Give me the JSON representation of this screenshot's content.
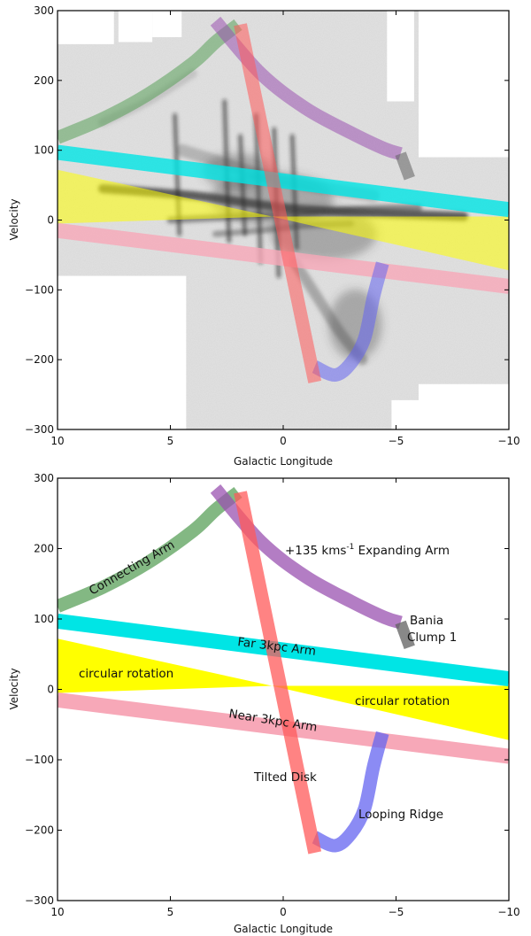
{
  "chart_data": [
    {
      "type": "line",
      "panel": "top",
      "xlabel": "Galactic Longitude",
      "ylabel": "Velocity",
      "xlim": [
        10,
        -10
      ],
      "ylim": [
        -300,
        300
      ],
      "xticks": [
        10,
        5,
        0,
        -5,
        -10
      ],
      "xticklabels": [
        "10",
        "5",
        "0",
        "−5",
        "−10"
      ],
      "yticks": [
        300,
        200,
        100,
        0,
        -100,
        -200,
        -300
      ],
      "yticklabels": [
        "300",
        "200",
        "100",
        "0",
        "−100",
        "−200",
        "−300"
      ],
      "background": "grayscale CO longitude-velocity map",
      "grid": false
    },
    {
      "type": "line",
      "panel": "bottom",
      "xlabel": "Galactic Longitude",
      "ylabel": "Velocity",
      "xlim": [
        10,
        -10
      ],
      "ylim": [
        -300,
        300
      ],
      "xticks": [
        10,
        5,
        0,
        -5,
        -10
      ],
      "xticklabels": [
        "10",
        "5",
        "0",
        "−5",
        "−10"
      ],
      "yticks": [
        300,
        200,
        100,
        0,
        -100,
        -200,
        -300
      ],
      "yticklabels": [
        "300",
        "200",
        "100",
        "0",
        "−100",
        "−200",
        "−300"
      ],
      "grid": false,
      "annotations": {
        "connecting_arm": "Connecting Arm",
        "expanding_arm_prefix": "+135 kms",
        "expanding_arm_sup": "-1",
        "expanding_arm_suffix": " Expanding Arm",
        "bania_line1": "Bania",
        "bania_line2": "Clump 1",
        "far_arm": "Far 3kpc Arm",
        "circular_left": "circular rotation",
        "circular_right": "circular rotation",
        "near_arm": "Near 3kpc Arm",
        "tilted_disk": "Tilted Disk",
        "looping_ridge": "Looping Ridge"
      }
    }
  ],
  "features": [
    {
      "name": "Connecting Arm",
      "kind": "line",
      "color": "#5aa05a",
      "x": [
        10,
        8,
        6,
        4,
        3,
        2
      ],
      "y": [
        118,
        145,
        180,
        225,
        255,
        280
      ]
    },
    {
      "name": "+135 kms-1 Expanding Arm",
      "kind": "line",
      "color": "#9a52b0",
      "x": [
        3,
        1,
        -1,
        -3,
        -4.5,
        -5.2
      ],
      "y": [
        285,
        210,
        160,
        125,
        102,
        95
      ]
    },
    {
      "name": "Bania Clump 1",
      "kind": "line",
      "color": "#606060",
      "x": [
        -5.2,
        -5.6
      ],
      "y": [
        95,
        60
      ]
    },
    {
      "name": "Far 3kpc Arm",
      "kind": "band",
      "color": "#00e5e5",
      "x": [
        10,
        -10
      ],
      "y": [
        97,
        15
      ]
    },
    {
      "name": "Near 3kpc Arm",
      "kind": "band",
      "color": "#f7a8b8",
      "x": [
        10,
        -10
      ],
      "y": [
        -15,
        -95
      ]
    },
    {
      "name": "circular rotation",
      "kind": "area",
      "color": "#ffff00",
      "x": [
        10,
        0.5,
        -10
      ],
      "upper": [
        72,
        5,
        5
      ],
      "lower": [
        -5,
        5,
        -72
      ]
    },
    {
      "name": "Tilted Disk",
      "kind": "line",
      "color": "#ff5a5a",
      "x": [
        1.9,
        -1.4
      ],
      "y": [
        280,
        -232
      ]
    },
    {
      "name": "Looping Ridge",
      "kind": "line",
      "color": "#6464f0",
      "x": [
        -1.4,
        -2.3,
        -3.0,
        -3.6,
        -4.0,
        -4.4
      ],
      "y": [
        -210,
        -222,
        -205,
        -170,
        -110,
        -62
      ]
    }
  ]
}
